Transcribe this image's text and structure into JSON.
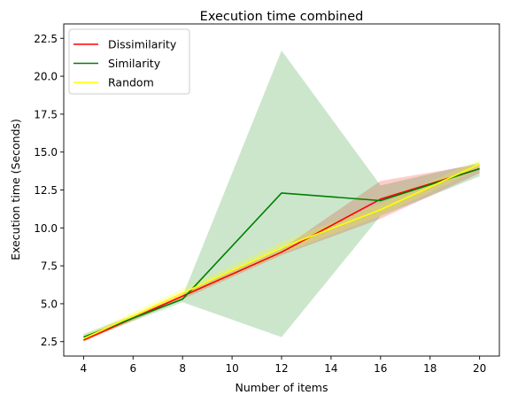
{
  "chart_data": {
    "type": "line",
    "title": "Execution time combined",
    "xlabel": "Number of items",
    "ylabel": "Execution time (Seconds)",
    "xlim": [
      3.2,
      20.8
    ],
    "ylim": [
      1.55,
      23.45
    ],
    "xticks": [
      4,
      6,
      8,
      10,
      12,
      14,
      16,
      18,
      20
    ],
    "xtick_labels": [
      "4",
      "6",
      "8",
      "10",
      "12",
      "14",
      "16",
      "18",
      "20"
    ],
    "yticks": [
      2.5,
      5.0,
      7.5,
      10.0,
      12.5,
      15.0,
      17.5,
      20.0,
      22.5
    ],
    "ytick_labels": [
      "2.5",
      "5.0",
      "7.5",
      "10.0",
      "12.5",
      "15.0",
      "17.5",
      "20.0",
      "22.5"
    ],
    "grid": false,
    "legend_position": "top-left",
    "x": [
      4,
      8,
      12,
      16,
      20
    ],
    "series": [
      {
        "name": "Dissimilarity",
        "color": "#ff0000",
        "band_color": "#ff0000",
        "values": [
          2.6,
          5.5,
          8.4,
          11.9,
          13.9
        ],
        "lower": [
          2.5,
          5.3,
          8.2,
          10.6,
          13.6
        ],
        "upper": [
          2.8,
          5.7,
          8.6,
          13.1,
          14.2
        ]
      },
      {
        "name": "Similarity",
        "color": "#008000",
        "band_color": "#008000",
        "values": [
          2.8,
          5.3,
          12.3,
          11.8,
          13.9
        ],
        "lower": [
          2.6,
          5.1,
          2.8,
          10.8,
          13.4
        ],
        "upper": [
          3.0,
          5.5,
          21.7,
          12.8,
          14.3
        ]
      },
      {
        "name": "Random",
        "color": "#ffff00",
        "band_color": "#ffff00",
        "values": [
          2.7,
          5.7,
          8.7,
          11.2,
          14.2
        ],
        "lower": [
          2.5,
          5.4,
          8.3,
          10.8,
          13.9
        ],
        "upper": [
          2.9,
          6.0,
          9.1,
          11.6,
          14.5
        ]
      }
    ]
  }
}
